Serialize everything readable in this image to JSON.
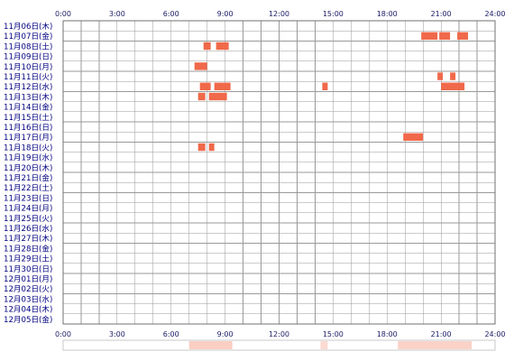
{
  "chart_data": {
    "type": "heatmap",
    "x_axis": {
      "range": [
        0,
        24
      ],
      "unit": "hour",
      "tick_labels": [
        "0:00",
        "3:00",
        "6:00",
        "9:00",
        "12:00",
        "15:00",
        "18:00",
        "21:00",
        "24:00"
      ]
    },
    "rows": [
      "11月06日(木)",
      "11月07日(金)",
      "11月08日(土)",
      "11月09日(日)",
      "11月10日(月)",
      "11月11日(火)",
      "11月12日(水)",
      "11月13日(木)",
      "11月14日(金)",
      "11月15日(土)",
      "11月16日(日)",
      "11月17日(月)",
      "11月18日(火)",
      "11月19日(水)",
      "11月20日(木)",
      "11月21日(金)",
      "11月22日(土)",
      "11月23日(日)",
      "11月24日(月)",
      "11月25日(火)",
      "11月26日(水)",
      "11月27日(木)",
      "11月28日(金)",
      "11月29日(土)",
      "11月30日(日)",
      "12月01日(月)",
      "12月02日(火)",
      "12月03日(水)",
      "12月04日(木)",
      "12月05日(金)"
    ],
    "activity": [
      {
        "row": 1,
        "segments": [
          [
            19.9,
            20.8
          ],
          [
            20.9,
            21.5
          ],
          [
            21.9,
            22.5
          ]
        ]
      },
      {
        "row": 2,
        "segments": [
          [
            7.8,
            8.2
          ],
          [
            8.5,
            9.2
          ]
        ]
      },
      {
        "row": 4,
        "segments": [
          [
            7.3,
            8.0
          ]
        ]
      },
      {
        "row": 5,
        "segments": [
          [
            20.8,
            21.1
          ],
          [
            21.5,
            21.8
          ]
        ]
      },
      {
        "row": 6,
        "segments": [
          [
            7.6,
            8.2
          ],
          [
            8.4,
            9.3
          ],
          [
            14.4,
            14.7
          ],
          [
            21.0,
            22.3
          ]
        ]
      },
      {
        "row": 7,
        "segments": [
          [
            7.5,
            7.9
          ],
          [
            8.1,
            9.1
          ]
        ]
      },
      {
        "row": 11,
        "segments": [
          [
            18.9,
            20.0
          ]
        ]
      },
      {
        "row": 12,
        "segments": [
          [
            7.5,
            7.9
          ],
          [
            8.1,
            8.4
          ]
        ]
      }
    ],
    "summary_strip": [
      {
        "start": 7.0,
        "end": 9.4,
        "intensity": 0.6
      },
      {
        "start": 14.3,
        "end": 14.7,
        "intensity": 0.45
      },
      {
        "start": 18.6,
        "end": 22.7,
        "intensity": 0.55
      }
    ],
    "colors": {
      "bar": "#f0694a",
      "bar_edge": "#ffffff",
      "grid_line": "#9a9a9a",
      "grid_border": "#707070",
      "strip_fill": "#fbd0bf",
      "strip_border": "#c8c8c8",
      "tick_label": "#1a1a66",
      "date_label": "#000080"
    },
    "grid": true
  }
}
